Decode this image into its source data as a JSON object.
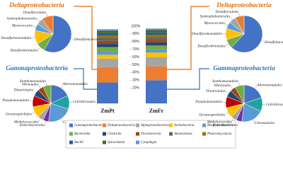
{
  "chart_data": [
    {
      "type": "pie",
      "title": "Deltaproteobacteria",
      "title_color": "#e46c0a",
      "categories": [
        "Desulfobacterales",
        "Desulfovibrionales",
        "Desulfuromonadales",
        "Myxococcales",
        "Syntrophobacterales",
        "Desulfarculales"
      ],
      "values": [
        58,
        8,
        12,
        6,
        6,
        10
      ],
      "colors": [
        "#4472c4",
        "#70ad47",
        "#ffc000",
        "#5b9bd5",
        "#a5a5a5",
        "#ed7d31"
      ]
    },
    {
      "type": "pie",
      "title": "Gammaproteobacteria",
      "title_color": "#2e75b6",
      "categories": [
        "Alteromonadales",
        "Cellvibrionales",
        "Chromatiales",
        "Enterobacterales",
        "Methylococcales",
        "Oceanospirillales",
        "Pseudomonadales",
        "Thiotrichales",
        "Vibrionales",
        "Xanthomonadales"
      ],
      "values": [
        18,
        12,
        22,
        5,
        5,
        10,
        10,
        6,
        5,
        7
      ],
      "colors": [
        "#4472c4",
        "#1fa3a0",
        "#5b9bd5",
        "#7030a0",
        "#a5a5a5",
        "#ffc000",
        "#c00000",
        "#264478",
        "#9e480e",
        "#70ad47"
      ]
    },
    {
      "type": "bar",
      "stacked": true,
      "categories": [
        "ZmPt",
        "ZmFr"
      ],
      "ylim": [
        0,
        100
      ],
      "yticks": [
        {
          "value": 20,
          "label": "20%"
        },
        {
          "value": 30,
          "label": "30%"
        },
        {
          "value": 40,
          "label": "40%"
        },
        {
          "value": 50,
          "label": "50%"
        },
        {
          "value": 60,
          "label": "60%"
        },
        {
          "value": 70,
          "label": "70%"
        },
        {
          "value": 80,
          "label": "80%"
        },
        {
          "value": 90,
          "label": "90%"
        },
        {
          "value": 100,
          "label": "100%"
        }
      ],
      "series": [
        {
          "name": "Gammaproteobacteria",
          "color": "#4472c4",
          "values": [
            27,
            30
          ]
        },
        {
          "name": "Deltaproteobacteria",
          "color": "#ed7d31",
          "values": [
            20,
            18
          ]
        },
        {
          "name": "Alphaproteobacteria",
          "color": "#a5a5a5",
          "values": [
            11,
            12
          ]
        },
        {
          "name": "Actinobacteria",
          "color": "#ffc000",
          "values": [
            5,
            6
          ]
        },
        {
          "name": "Betaproteobacteria",
          "color": "#5b9bd5",
          "values": [
            4,
            4
          ]
        },
        {
          "name": "Bacteroidia",
          "color": "#70ad47",
          "values": [
            6,
            5
          ]
        },
        {
          "name": "Clostridia",
          "color": "#264478",
          "values": [
            4,
            4
          ]
        },
        {
          "name": "Flavobacteriia",
          "color": "#9e480e",
          "values": [
            4,
            3
          ]
        },
        {
          "name": "Anaerolineae",
          "color": "#636363",
          "values": [
            4,
            4
          ]
        },
        {
          "name": "Planctomycetacia",
          "color": "#997300",
          "values": [
            3,
            3
          ]
        },
        {
          "name": "Bacilli",
          "color": "#255e91",
          "values": [
            3,
            3
          ]
        },
        {
          "name": "Spirochaetia",
          "color": "#43682b",
          "values": [
            3,
            3
          ]
        },
        {
          "name": "Cytophagia",
          "color": "#698ed0",
          "values": [
            2,
            2
          ]
        }
      ]
    },
    {
      "type": "pie",
      "title": "Deltaproteobacteria",
      "title_color": "#e46c0a",
      "categories": [
        "Desulfobacterales",
        "Desulfovibrionales",
        "Desulfuromonadales",
        "Myxococcales",
        "Syntrophobacterales",
        "Desulfarculales"
      ],
      "values": [
        62,
        8,
        10,
        6,
        6,
        8
      ],
      "colors": [
        "#4472c4",
        "#70ad47",
        "#ffc000",
        "#5b9bd5",
        "#a5a5a5",
        "#ed7d31"
      ]
    },
    {
      "type": "pie",
      "title": "Gammaproteobacteria",
      "title_color": "#2e75b6",
      "categories": [
        "Alteromonadales",
        "Cellvibrionales",
        "Chromatiales",
        "Enterobacterales",
        "Methylococcales",
        "Oceanospirillales",
        "Pseudomonadales",
        "Thiotrichales",
        "Vibrionales",
        "Xanthomonadales"
      ],
      "values": [
        20,
        12,
        20,
        5,
        5,
        9,
        10,
        6,
        5,
        8
      ],
      "colors": [
        "#4472c4",
        "#1fa3a0",
        "#5b9bd5",
        "#7030a0",
        "#a5a5a5",
        "#ffc000",
        "#c00000",
        "#264478",
        "#9e480e",
        "#70ad47"
      ]
    }
  ]
}
